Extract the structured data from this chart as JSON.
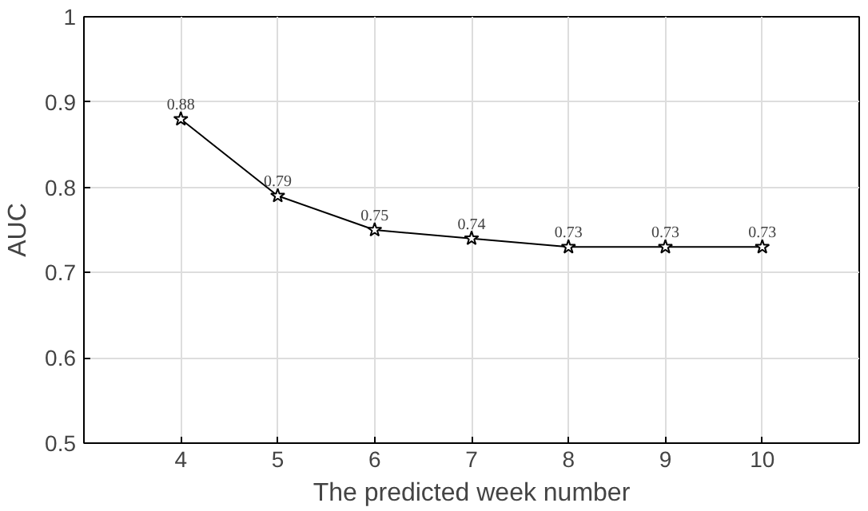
{
  "chart_data": {
    "type": "line",
    "xlabel": "The predicted week number",
    "ylabel": "AUC",
    "x": [
      4,
      5,
      6,
      7,
      8,
      9,
      10
    ],
    "series": [
      {
        "color": "#000000",
        "values": [
          0.88,
          0.79,
          0.75,
          0.74,
          0.73,
          0.73,
          0.73
        ]
      }
    ],
    "data_labels": true,
    "marker": "star",
    "line_style": "solid",
    "grid": true,
    "xlim": [
      3,
      11
    ],
    "xticks": [
      4,
      5,
      6,
      7,
      8,
      9,
      10
    ],
    "ylim": [
      0.5,
      1
    ],
    "yticks": [
      0.5,
      0.6,
      0.7,
      0.8,
      0.9,
      1
    ]
  }
}
